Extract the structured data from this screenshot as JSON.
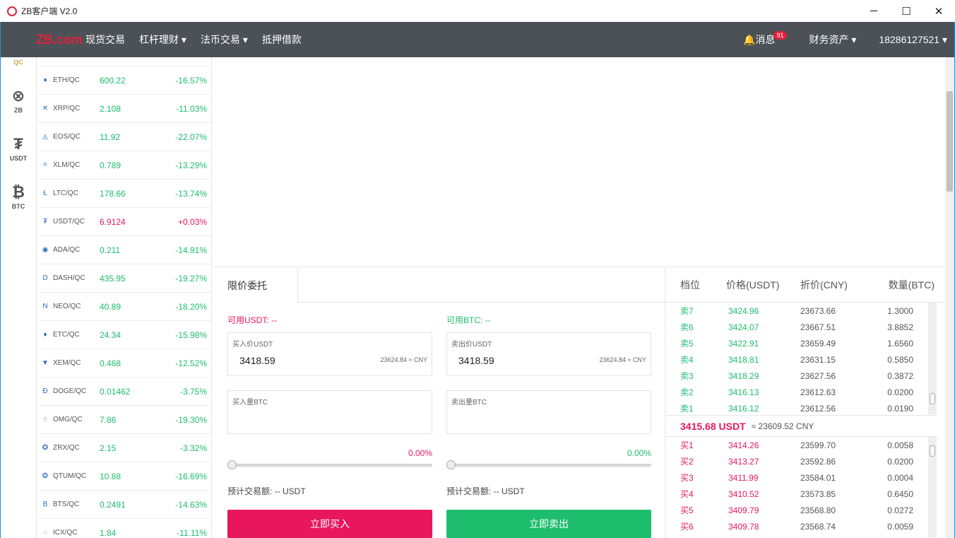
{
  "window": {
    "title": "ZB客户端 V2.0",
    "minimize": "─",
    "maximize": "☐",
    "close": "✕"
  },
  "nav": {
    "brand": "ZB.com",
    "items": [
      "现货交易",
      "杠杆理财 ▾",
      "法币交易 ▾",
      "抵押借款"
    ],
    "messages": "消息",
    "message_count": "91",
    "assets": "财务资产 ▾",
    "account": "18286127521 ▾"
  },
  "sidebar": {
    "items": [
      {
        "label": "QC",
        "icon": "qc-icon"
      },
      {
        "label": "ZB",
        "icon": "zb-icon"
      },
      {
        "label": "USDT",
        "icon": "tether-icon"
      },
      {
        "label": "BTC",
        "icon": "bitcoin-icon"
      }
    ]
  },
  "market": [
    {
      "pair": "ETH/QC",
      "price": "600.22",
      "change": "-16.57%",
      "icon": "♦"
    },
    {
      "pair": "XRP/QC",
      "price": "2.108",
      "change": "-11.03%",
      "icon": "✕"
    },
    {
      "pair": "EOS/QC",
      "price": "11.92",
      "change": "-22.07%",
      "icon": "◬"
    },
    {
      "pair": "XLM/QC",
      "price": "0.789",
      "change": "-13.29%",
      "icon": "✧"
    },
    {
      "pair": "LTC/QC",
      "price": "178.66",
      "change": "-13.74%",
      "icon": "Ł"
    },
    {
      "pair": "USDT/QC",
      "price": "6.9124",
      "change": "+0.03%",
      "icon": "₮",
      "up": true
    },
    {
      "pair": "ADA/QC",
      "price": "0.211",
      "change": "-14.91%",
      "icon": "◉"
    },
    {
      "pair": "DASH/QC",
      "price": "435.95",
      "change": "-19.27%",
      "icon": "D"
    },
    {
      "pair": "NEO/QC",
      "price": "40.89",
      "change": "-18.20%",
      "icon": "N"
    },
    {
      "pair": "ETC/QC",
      "price": "24.34",
      "change": "-15.98%",
      "icon": "♦"
    },
    {
      "pair": "XEM/QC",
      "price": "0.468",
      "change": "-12.52%",
      "icon": "▼"
    },
    {
      "pair": "DOGE/QC",
      "price": "0.01462",
      "change": "-3.75%",
      "icon": "Ð"
    },
    {
      "pair": "OMG/QC",
      "price": "7.86",
      "change": "-19.30%",
      "icon": "⁘"
    },
    {
      "pair": "ZRX/QC",
      "price": "2.15",
      "change": "-3.32%",
      "icon": "✪"
    },
    {
      "pair": "QTUM/QC",
      "price": "10.88",
      "change": "-16.69%",
      "icon": "❂"
    },
    {
      "pair": "BTS/QC",
      "price": "0.2491",
      "change": "-14.63%",
      "icon": "B"
    },
    {
      "pair": "ICX/QC",
      "price": "1.84",
      "change": "-11.11%",
      "icon": "◌"
    }
  ],
  "order": {
    "tab": "限价委托",
    "buy": {
      "available": "可用USDT: --",
      "price_label": "买入价USDT",
      "price": "3418.59",
      "cny": "23624.84 ≈ CNY",
      "amount_label": "买入量BTC",
      "percent": "0.00%",
      "estimate": "预计交易额: -- USDT",
      "button": "立即买入"
    },
    "sell": {
      "available": "可用BTC: --",
      "price_label": "卖出价USDT",
      "price": "3418.59",
      "cny": "23624.84 ≈ CNY",
      "amount_label": "卖出量BTC",
      "percent": "0.00%",
      "estimate": "预计交易额: -- USDT",
      "button": "立即卖出"
    }
  },
  "book": {
    "headers": [
      "档位",
      "价格(USDT)",
      "折价(CNY)",
      "数量(BTC)"
    ],
    "asks": [
      [
        "卖7",
        "3424.96",
        "23673.66",
        "1.3000"
      ],
      [
        "卖6",
        "3424.07",
        "23667.51",
        "3.8852"
      ],
      [
        "卖5",
        "3422.91",
        "23659.49",
        "1.6560"
      ],
      [
        "卖4",
        "3418.81",
        "23631.15",
        "0.5850"
      ],
      [
        "卖3",
        "3418.29",
        "23627.56",
        "0.3872"
      ],
      [
        "卖2",
        "3416.13",
        "23612.63",
        "0.0200"
      ],
      [
        "卖1",
        "3416.12",
        "23612.56",
        "0.0190"
      ]
    ],
    "last_price": "3415.68 USDT",
    "last_cny": "≈  23609.52 CNY",
    "bids": [
      [
        "买1",
        "3414.26",
        "23599.70",
        "0.0058"
      ],
      [
        "买2",
        "3413.27",
        "23592.86",
        "0.0200"
      ],
      [
        "买3",
        "3411.99",
        "23584.01",
        "0.0004"
      ],
      [
        "买4",
        "3410.52",
        "23573.85",
        "0.6450"
      ],
      [
        "买5",
        "3409.79",
        "23568.80",
        "0.0272"
      ],
      [
        "买6",
        "3409.78",
        "23568.74",
        "0.0059"
      ]
    ]
  },
  "colors": {
    "green": "#1ebd6e",
    "red": "#e8175d",
    "nav": "#4b5157"
  }
}
